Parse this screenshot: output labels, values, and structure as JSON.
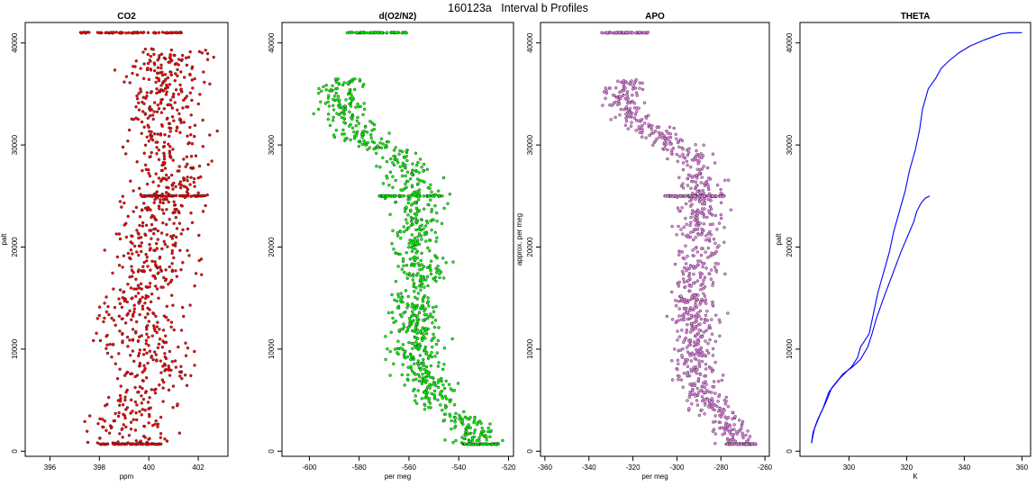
{
  "figure_title": "160123a   Interval b Profiles",
  "chart_data": [
    {
      "type": "scatter",
      "title": "CO2",
      "xlabel": "ppm",
      "ylabel": "palt",
      "xlim": [
        395,
        403.2
      ],
      "ylim": [
        -500,
        42000
      ],
      "xticks": [
        396,
        398,
        400,
        402
      ],
      "yticks": [
        0,
        10000,
        20000,
        30000,
        40000
      ],
      "point_color": "#ff0000",
      "centerline": [
        [
          0,
          399.3
        ],
        [
          2500,
          399.2
        ],
        [
          5000,
          399.5
        ],
        [
          8000,
          400.2
        ],
        [
          11000,
          399.6
        ],
        [
          15000,
          399.5
        ],
        [
          18000,
          400.3
        ],
        [
          21000,
          400.0
        ],
        [
          24000,
          400.6
        ],
        [
          27000,
          400.9
        ],
        [
          30000,
          401.0
        ],
        [
          33000,
          400.7
        ],
        [
          36000,
          400.9
        ],
        [
          38000,
          400.6
        ],
        [
          39500,
          401.0
        ]
      ],
      "spread": 1.15,
      "flat_layers": [
        {
          "y": 700,
          "x_from": 398.0,
          "x_to": 400.5
        },
        {
          "y": 25000,
          "x_from": 399.7,
          "x_to": 402.3
        },
        {
          "y": 41000,
          "x_from": 397.2,
          "x_to": 401.4
        }
      ]
    },
    {
      "type": "scatter",
      "title": "d(O2/N2)",
      "xlabel": "per meg",
      "ylabel": "",
      "xlim": [
        -611,
        -518
      ],
      "ylim": [
        -500,
        42000
      ],
      "xticks": [
        -600,
        -580,
        -560,
        -540,
        -520
      ],
      "yticks": [
        0,
        10000,
        20000,
        30000,
        40000
      ],
      "point_color": "#00ff00",
      "centerline": [
        [
          0,
          -532
        ],
        [
          2500,
          -536
        ],
        [
          5000,
          -549
        ],
        [
          8000,
          -556
        ],
        [
          11000,
          -557
        ],
        [
          15000,
          -557
        ],
        [
          18000,
          -556
        ],
        [
          21000,
          -557
        ],
        [
          24000,
          -556
        ],
        [
          27000,
          -560
        ],
        [
          29000,
          -563
        ],
        [
          30500,
          -578
        ],
        [
          33000,
          -586
        ],
        [
          35500,
          -588
        ],
        [
          36500,
          -584
        ]
      ],
      "spread": 7,
      "flat_layers": [
        {
          "y": 700,
          "x_from": -538,
          "x_to": -524
        },
        {
          "y": 25000,
          "x_from": -572,
          "x_to": -546
        },
        {
          "y": 41000,
          "x_from": -585,
          "x_to": -561
        }
      ]
    },
    {
      "type": "scatter",
      "title": "APO",
      "xlabel": "per meg",
      "ylabel": "approx. per meg",
      "xlim": [
        -362,
        -258
      ],
      "ylim": [
        -500,
        42000
      ],
      "xticks": [
        -360,
        -340,
        -320,
        -300,
        -280,
        -260
      ],
      "yticks": [
        0,
        10000,
        20000,
        30000,
        40000
      ],
      "point_color": "#ee82ee",
      "centerline": [
        [
          0,
          -271
        ],
        [
          2500,
          -276
        ],
        [
          5000,
          -288
        ],
        [
          8000,
          -292
        ],
        [
          11000,
          -291
        ],
        [
          15000,
          -292
        ],
        [
          18000,
          -290
        ],
        [
          21000,
          -289
        ],
        [
          24000,
          -289
        ],
        [
          27000,
          -291
        ],
        [
          29000,
          -294
        ],
        [
          30500,
          -305
        ],
        [
          33000,
          -322
        ],
        [
          35500,
          -325
        ],
        [
          36500,
          -318
        ]
      ],
      "spread": 7,
      "flat_layers": [
        {
          "y": 700,
          "x_from": -278,
          "x_to": -264
        },
        {
          "y": 25000,
          "x_from": -307,
          "x_to": -278
        },
        {
          "y": 41000,
          "x_from": -335,
          "x_to": -313
        }
      ]
    },
    {
      "type": "line",
      "title": "THETA",
      "xlabel": "K",
      "ylabel": "palt",
      "xlim": [
        283,
        363
      ],
      "ylim": [
        -500,
        42000
      ],
      "xticks": [
        300,
        320,
        340,
        360
      ],
      "yticks": [
        0,
        10000,
        20000,
        30000,
        40000
      ],
      "line_color": "#0000ff",
      "series": [
        {
          "points": [
            [
              287.0,
              800
            ],
            [
              287.5,
              1800
            ],
            [
              289,
              3000
            ],
            [
              291,
              4200
            ],
            [
              293,
              5800
            ],
            [
              297,
              7200
            ],
            [
              301,
              8300
            ],
            [
              303,
              9200
            ],
            [
              304,
              10200
            ],
            [
              307,
              11500
            ],
            [
              308.5,
              13500
            ],
            [
              310,
              15500
            ],
            [
              312,
              17500
            ],
            [
              314,
              19500
            ],
            [
              315.5,
              21500
            ],
            [
              317.5,
              23500
            ],
            [
              319.5,
              25500
            ],
            [
              321,
              27500
            ],
            [
              323,
              29500
            ],
            [
              324.5,
              31500
            ],
            [
              325.5,
              33500
            ],
            [
              327.5,
              35500
            ],
            [
              330,
              36500
            ],
            [
              332,
              37500
            ],
            [
              334.5,
              38200
            ],
            [
              338,
              39000
            ],
            [
              342,
              39700
            ],
            [
              347,
              40300
            ],
            [
              351,
              40700
            ],
            [
              353,
              40900
            ],
            [
              356,
              41000
            ],
            [
              360,
              41000
            ]
          ]
        },
        {
          "points": [
            [
              287.0,
              800
            ],
            [
              288,
              2200
            ],
            [
              290,
              3600
            ],
            [
              292,
              4800
            ],
            [
              294,
              6200
            ],
            [
              298,
              7600
            ],
            [
              301,
              8200
            ],
            [
              304,
              9000
            ],
            [
              306.5,
              10200
            ],
            [
              308,
              11500
            ],
            [
              309.5,
              13000
            ],
            [
              312,
              15000
            ],
            [
              314,
              16500
            ],
            [
              316,
              18000
            ],
            [
              318,
              19500
            ],
            [
              319.5,
              20500
            ],
            [
              321,
              21500
            ],
            [
              322.5,
              22500
            ],
            [
              323.5,
              23500
            ],
            [
              325,
              24300
            ],
            [
              326.5,
              24800
            ],
            [
              328,
              25000
            ]
          ]
        }
      ]
    }
  ]
}
